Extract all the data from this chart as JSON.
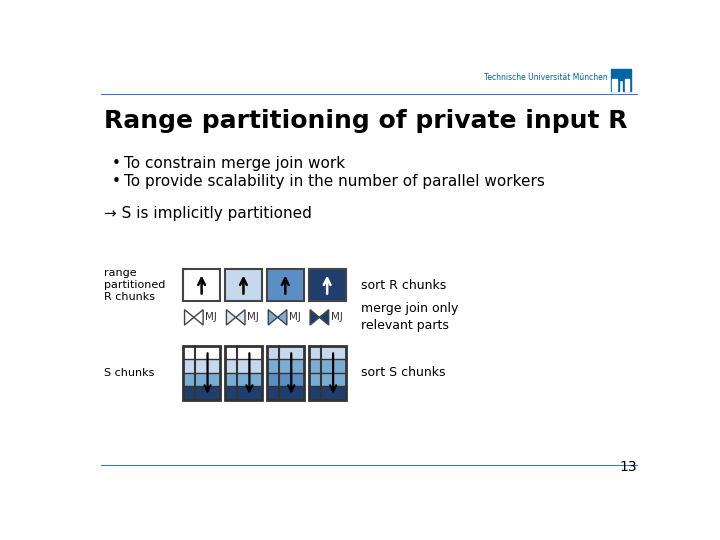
{
  "title": "Range partitioning of private input R",
  "bullets": [
    "To constrain merge join work",
    "To provide scalability in the number of parallel workers"
  ],
  "arrow_text": "→ S is implicitly partitioned",
  "label_range": "range\npartitioned\nR chunks",
  "label_s": "S chunks",
  "label_sort_r": "sort R chunks",
  "label_mj": "merge join only\nrelevant parts",
  "label_sort_s": "sort S chunks",
  "tum_text": "Technische Universität München",
  "page_num": "13",
  "bg_color": "#ffffff",
  "title_color": "#000000",
  "text_color": "#000000",
  "tum_blue": "#0065a3",
  "header_line_color": "#4472c4",
  "r_chunk_colors": [
    "#ffffff",
    "#c5d8ee",
    "#5b8ec4",
    "#1f3e6e"
  ],
  "mj_colors": [
    "#ffffff",
    "#dce6f1",
    "#7aadd4",
    "#1f3e6e"
  ],
  "s_chunk_rows": [
    [
      "#ffffff",
      "#c5d8ee",
      "#7aadd4",
      "#1f3e6e"
    ],
    [
      "#ffffff",
      "#c5d8ee",
      "#7aadd4",
      "#1f3e6e"
    ],
    [
      "#c5d8ee",
      "#7aadd4",
      "#5b8ec4",
      "#1f3e6e"
    ],
    [
      "#c5d8ee",
      "#7aadd4",
      "#7aadd4",
      "#1f3e6e"
    ]
  ]
}
